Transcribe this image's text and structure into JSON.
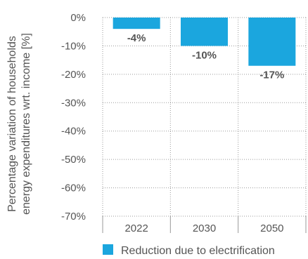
{
  "chart_data": {
    "type": "bar",
    "categories": [
      "2022",
      "2030",
      "2050"
    ],
    "series": [
      {
        "name": "Reduction due to electrification",
        "values": [
          -4,
          -10,
          -17
        ],
        "color": "#1ba6de"
      }
    ],
    "data_labels": [
      "-4%",
      "-10%",
      "-17%"
    ],
    "ylabel": [
      "Percentage variation of households",
      "energy expenditures wrt. income [%]"
    ],
    "yticks": [
      0,
      -10,
      -20,
      -30,
      -40,
      -50,
      -60,
      -70
    ],
    "ytick_labels": [
      "0%",
      "-10%",
      "-20%",
      "-30%",
      "-40%",
      "-50%",
      "-60%",
      "-70%"
    ],
    "ylim": [
      -70,
      0
    ],
    "grid": "horizontal dotted",
    "legend": "bottom"
  }
}
